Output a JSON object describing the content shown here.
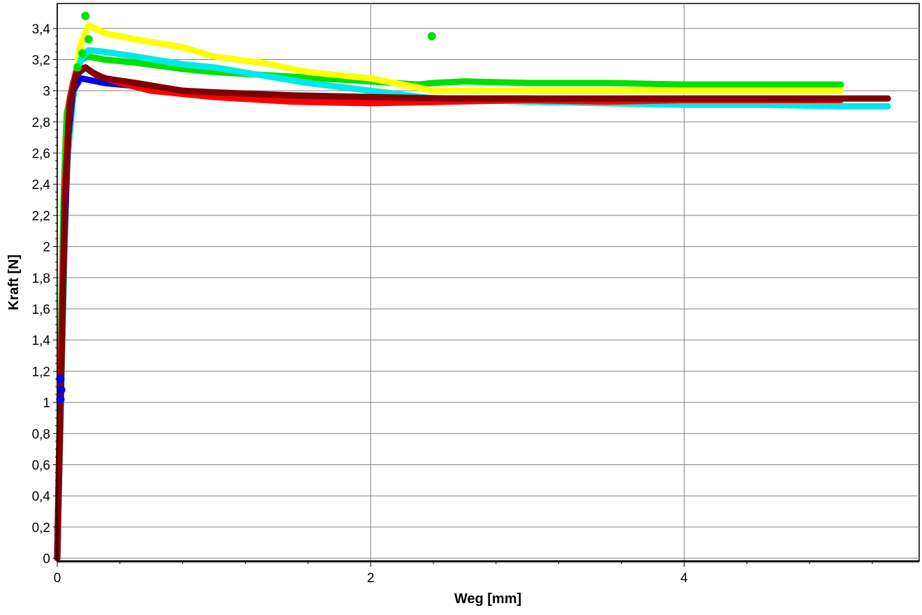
{
  "chart_data": {
    "type": "line",
    "title": "",
    "xlabel": "Weg [mm]",
    "ylabel": "Kraft [N]",
    "xlim": [
      0,
      5.5
    ],
    "ylim": [
      -0.02,
      3.56
    ],
    "grid": true,
    "x_ticks": [
      {
        "value": 0,
        "label": "0"
      },
      {
        "value": 2,
        "label": "2"
      },
      {
        "value": 4,
        "label": "4"
      }
    ],
    "y_ticks": [
      {
        "value": 0,
        "label": "0"
      },
      {
        "value": 0.2,
        "label": "0,2"
      },
      {
        "value": 0.4,
        "label": "0,4"
      },
      {
        "value": 0.6,
        "label": "0,6"
      },
      {
        "value": 0.8,
        "label": "0,8"
      },
      {
        "value": 1,
        "label": "1"
      },
      {
        "value": 1.2,
        "label": "1,2"
      },
      {
        "value": 1.4,
        "label": "1,4"
      },
      {
        "value": 1.6,
        "label": "1,6"
      },
      {
        "value": 1.8,
        "label": "1,8"
      },
      {
        "value": 2,
        "label": "2"
      },
      {
        "value": 2.2,
        "label": "2,2"
      },
      {
        "value": 2.4,
        "label": "2,4"
      },
      {
        "value": 2.6,
        "label": "2,6"
      },
      {
        "value": 2.8,
        "label": "2,8"
      },
      {
        "value": 3,
        "label": "3"
      },
      {
        "value": 3.2,
        "label": "3,2"
      },
      {
        "value": 3.4,
        "label": "3,4"
      }
    ],
    "series": [
      {
        "color": "#00e000",
        "x": [
          0,
          0.02,
          0.04,
          0.06,
          0.1,
          0.15,
          0.2,
          0.3,
          0.5,
          0.8,
          1.0,
          1.5,
          2.0,
          2.3,
          2.4,
          2.6,
          3.0,
          3.5,
          4.0,
          4.5,
          5.0
        ],
        "y": [
          0,
          1.2,
          2.3,
          2.85,
          3.05,
          3.2,
          3.22,
          3.2,
          3.18,
          3.14,
          3.12,
          3.09,
          3.06,
          3.04,
          3.05,
          3.06,
          3.05,
          3.05,
          3.04,
          3.04,
          3.04
        ]
      },
      {
        "color": "#ffff00",
        "x": [
          0,
          0.03,
          0.06,
          0.1,
          0.15,
          0.2,
          0.3,
          0.5,
          0.8,
          1.0,
          1.3,
          1.6,
          2.0,
          2.3,
          2.4,
          2.6,
          3.0,
          3.5,
          4.0,
          4.5,
          5.0
        ],
        "y": [
          0,
          1.4,
          2.6,
          3.0,
          3.3,
          3.42,
          3.37,
          3.33,
          3.28,
          3.22,
          3.18,
          3.12,
          3.08,
          3.02,
          3.0,
          3.0,
          3.0,
          3.0,
          3.0,
          3.0,
          3.0
        ]
      },
      {
        "color": "#00e8e8",
        "x": [
          0,
          0.03,
          0.06,
          0.1,
          0.15,
          0.2,
          0.3,
          0.5,
          0.8,
          1.0,
          1.3,
          1.6,
          2.0,
          2.4,
          3.0,
          3.5,
          4.0,
          4.5,
          5.0,
          5.3
        ],
        "y": [
          0,
          1.3,
          2.5,
          2.95,
          3.2,
          3.26,
          3.25,
          3.22,
          3.17,
          3.15,
          3.1,
          3.05,
          3.0,
          2.95,
          2.93,
          2.92,
          2.91,
          2.91,
          2.9,
          2.9
        ]
      },
      {
        "color": "#0000f0",
        "x": [
          0,
          0.02,
          0.04,
          0.07,
          0.1,
          0.15,
          0.2,
          0.3,
          0.5,
          0.8,
          1.0,
          1.5,
          2.0,
          2.5,
          3.0,
          3.5,
          4.0,
          4.5,
          5.0
        ],
        "y": [
          0,
          1.05,
          1.9,
          2.7,
          3.0,
          3.08,
          3.07,
          3.05,
          3.03,
          3.0,
          2.98,
          2.96,
          2.95,
          2.95,
          2.95,
          2.94,
          2.94,
          2.94,
          2.94
        ]
      },
      {
        "color": "#ff0000",
        "x": [
          0,
          0.02,
          0.05,
          0.08,
          0.12,
          0.18,
          0.25,
          0.4,
          0.6,
          0.8,
          1.0,
          1.5,
          2.0,
          2.5,
          3.0,
          3.5,
          4.0,
          4.5,
          5.0
        ],
        "y": [
          0,
          1.1,
          2.4,
          2.95,
          3.12,
          3.15,
          3.1,
          3.05,
          3.0,
          2.98,
          2.96,
          2.93,
          2.92,
          2.93,
          2.94,
          2.93,
          2.94,
          2.94,
          2.94
        ]
      },
      {
        "color": "#800000",
        "x": [
          0,
          0.02,
          0.05,
          0.08,
          0.12,
          0.18,
          0.22,
          0.3,
          0.5,
          0.8,
          1.0,
          1.5,
          2.0,
          2.5,
          3.0,
          3.5,
          4.0,
          4.5,
          5.0,
          5.3
        ],
        "y": [
          0,
          0.9,
          2.3,
          2.9,
          3.1,
          3.15,
          3.12,
          3.08,
          3.05,
          3.0,
          2.99,
          2.97,
          2.96,
          2.95,
          2.95,
          2.95,
          2.95,
          2.95,
          2.95,
          2.95
        ]
      }
    ],
    "markers": [
      {
        "color": "#00e000",
        "x": 0.18,
        "y": 3.48
      },
      {
        "color": "#00e000",
        "x": 0.2,
        "y": 3.33
      },
      {
        "color": "#00e000",
        "x": 0.16,
        "y": 3.24
      },
      {
        "color": "#00e000",
        "x": 0.13,
        "y": 3.15
      },
      {
        "color": "#00e000",
        "x": 2.39,
        "y": 3.35
      },
      {
        "color": "#0000f0",
        "x": 0.02,
        "y": 1.15
      },
      {
        "color": "#0000f0",
        "x": 0.025,
        "y": 1.08
      },
      {
        "color": "#0000f0",
        "x": 0.02,
        "y": 1.02
      }
    ]
  }
}
